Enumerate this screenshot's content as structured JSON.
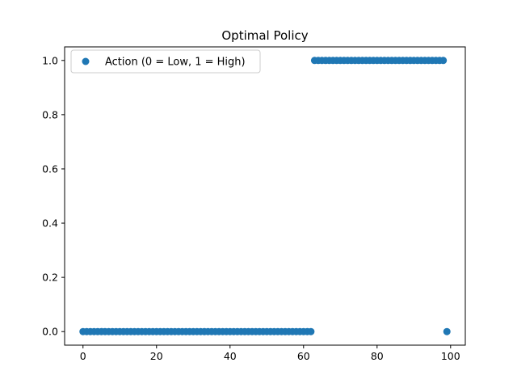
{
  "chart_data": {
    "type": "scatter",
    "title": "Optimal Policy",
    "xlabel": "",
    "ylabel": "",
    "xlim": [
      -5,
      104
    ],
    "ylim": [
      -0.05,
      1.05
    ],
    "x_ticks": [
      0,
      20,
      40,
      60,
      80,
      100
    ],
    "y_ticks": [
      0.0,
      0.2,
      0.4,
      0.6,
      0.8,
      1.0
    ],
    "x_tick_labels": [
      "0",
      "20",
      "40",
      "60",
      "80",
      "100"
    ],
    "y_tick_labels": [
      "0.0",
      "0.2",
      "0.4",
      "0.6",
      "0.8",
      "1.0"
    ],
    "grid": false,
    "legend_position": "top-left",
    "series": [
      {
        "name": "Action (0 = Low, 1 = High)",
        "color": "#1f77b4",
        "x": [
          0,
          1,
          2,
          3,
          4,
          5,
          6,
          7,
          8,
          9,
          10,
          11,
          12,
          13,
          14,
          15,
          16,
          17,
          18,
          19,
          20,
          21,
          22,
          23,
          24,
          25,
          26,
          27,
          28,
          29,
          30,
          31,
          32,
          33,
          34,
          35,
          36,
          37,
          38,
          39,
          40,
          41,
          42,
          43,
          44,
          45,
          46,
          47,
          48,
          49,
          50,
          51,
          52,
          53,
          54,
          55,
          56,
          57,
          58,
          59,
          60,
          61,
          62,
          63,
          64,
          65,
          66,
          67,
          68,
          69,
          70,
          71,
          72,
          73,
          74,
          75,
          76,
          77,
          78,
          79,
          80,
          81,
          82,
          83,
          84,
          85,
          86,
          87,
          88,
          89,
          90,
          91,
          92,
          93,
          94,
          95,
          96,
          97,
          98,
          99
        ],
        "y": [
          0,
          0,
          0,
          0,
          0,
          0,
          0,
          0,
          0,
          0,
          0,
          0,
          0,
          0,
          0,
          0,
          0,
          0,
          0,
          0,
          0,
          0,
          0,
          0,
          0,
          0,
          0,
          0,
          0,
          0,
          0,
          0,
          0,
          0,
          0,
          0,
          0,
          0,
          0,
          0,
          0,
          0,
          0,
          0,
          0,
          0,
          0,
          0,
          0,
          0,
          0,
          0,
          0,
          0,
          0,
          0,
          0,
          0,
          0,
          0,
          0,
          0,
          0,
          1,
          1,
          1,
          1,
          1,
          1,
          1,
          1,
          1,
          1,
          1,
          1,
          1,
          1,
          1,
          1,
          1,
          1,
          1,
          1,
          1,
          1,
          1,
          1,
          1,
          1,
          1,
          1,
          1,
          1,
          1,
          1,
          1,
          1,
          1,
          1,
          0
        ]
      }
    ]
  }
}
